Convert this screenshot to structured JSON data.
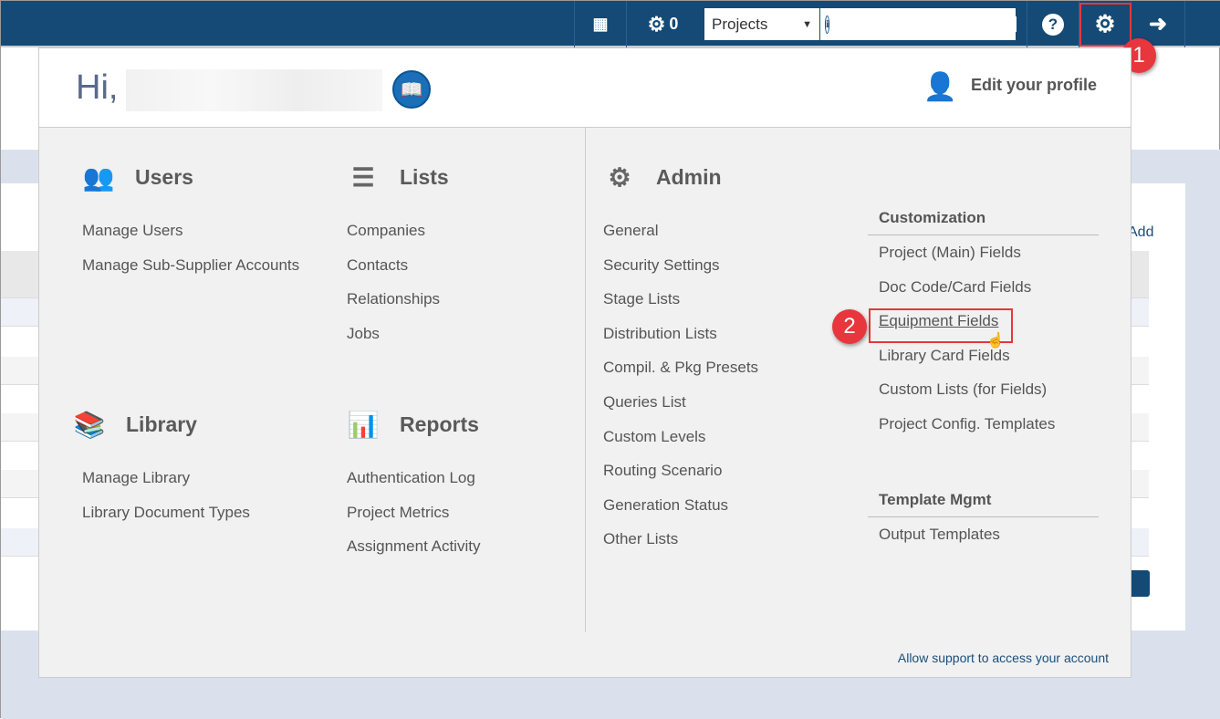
{
  "topbar": {
    "notifications_count": "0",
    "search_scope": "Projects",
    "search_placeholder": ""
  },
  "menu": {
    "greeting": "Hi,",
    "edit_profile": "Edit your profile",
    "users": {
      "title": "Users",
      "items": [
        "Manage Users",
        "Manage Sub-Supplier Accounts"
      ]
    },
    "lists": {
      "title": "Lists",
      "items": [
        "Companies",
        "Contacts",
        "Relationships",
        "Jobs"
      ]
    },
    "library": {
      "title": "Library",
      "items": [
        "Manage Library",
        "Library Document Types"
      ]
    },
    "reports": {
      "title": "Reports",
      "items": [
        "Authentication Log",
        "Project Metrics",
        "Assignment Activity"
      ]
    },
    "admin": {
      "title": "Admin",
      "items": [
        "General",
        "Security Settings",
        "Stage Lists",
        "Distribution Lists",
        "Compil. & Pkg Presets",
        "Queries List",
        "Custom Levels",
        "Routing Scenario",
        "Generation Status",
        "Other Lists"
      ]
    },
    "customization": {
      "title": "Customization",
      "items": [
        "Project (Main) Fields",
        "Doc Code/Card Fields",
        "Equipment Fields",
        "Library Card Fields",
        "Custom Lists (for Fields)",
        "Project Config. Templates"
      ]
    },
    "template_mgmt": {
      "title": "Template Mgmt",
      "items": [
        "Output Templates"
      ]
    },
    "support_link": "Allow support to access your account"
  },
  "background": {
    "add_label": "Add"
  },
  "annotations": {
    "step1": "1",
    "step2": "2",
    "color": "#e8363d"
  }
}
